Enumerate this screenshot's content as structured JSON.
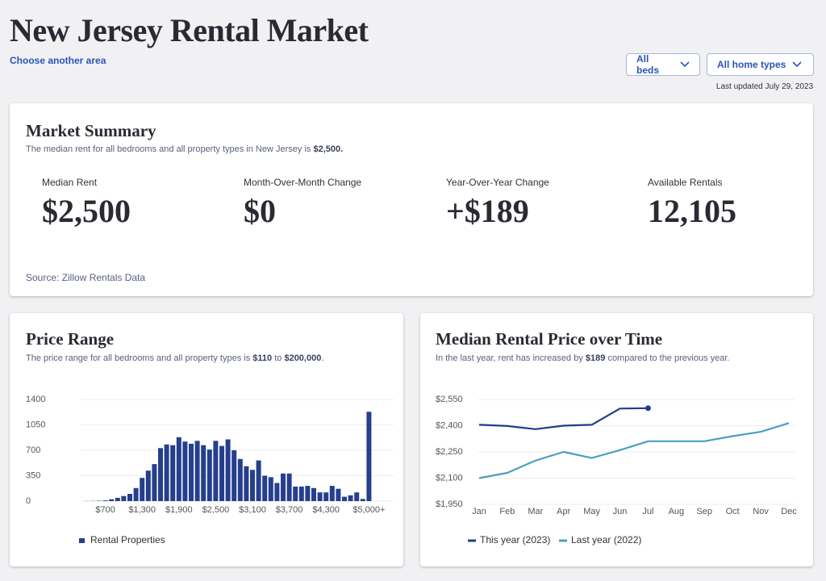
{
  "header": {
    "title": "New Jersey Rental Market",
    "link": "Choose another area",
    "filters": [
      "All beds",
      "All home types"
    ],
    "updated": "Last updated July 29, 2023"
  },
  "summary": {
    "title": "Market Summary",
    "subtitle": [
      "The median rent for all bedrooms and all property types in New Jersey is",
      "$2,500."
    ],
    "stats": [
      {
        "label": "Median Rent",
        "value": "$2,500"
      },
      {
        "label": "Month-Over-Month Change",
        "value": "$0"
      },
      {
        "label": "Year-Over-Year Change",
        "value": "+$189"
      },
      {
        "label": "Available Rentals",
        "value": "12,105"
      }
    ],
    "source": "Source: Zillow Rentals Data"
  },
  "chart_data": [
    {
      "type": "bar",
      "title": "Price Range",
      "subtitle": [
        "The price range for all bedrooms and all property types is",
        "$110",
        "to",
        "$200,000",
        "."
      ],
      "categories": [
        null,
        null,
        null,
        "$700",
        null,
        null,
        null,
        null,
        null,
        "$1,300",
        null,
        null,
        null,
        null,
        null,
        "$1,900",
        null,
        null,
        null,
        null,
        null,
        "$2,500",
        null,
        null,
        null,
        null,
        null,
        "$3,100",
        null,
        null,
        null,
        null,
        null,
        "$3,700",
        null,
        null,
        null,
        null,
        null,
        "$4,300",
        null,
        null,
        null,
        null,
        null,
        null,
        "$5,000+"
      ],
      "series": [
        {
          "name": "Rental Properties",
          "color": "#253f8e",
          "values": [
            2,
            3,
            5,
            10,
            25,
            45,
            70,
            100,
            180,
            320,
            420,
            510,
            730,
            780,
            770,
            880,
            820,
            790,
            830,
            770,
            710,
            830,
            760,
            850,
            700,
            580,
            480,
            430,
            560,
            350,
            330,
            250,
            380,
            380,
            200,
            200,
            210,
            180,
            120,
            120,
            210,
            170,
            60,
            80,
            120,
            30,
            1230
          ]
        }
      ],
      "ylim": [
        0,
        1400
      ],
      "yticks": [
        0,
        350,
        700,
        1050,
        1400
      ],
      "grid": true
    },
    {
      "type": "line",
      "title": "Median Rental Price over Time",
      "subtitle": [
        "In the last year, rent has increased by",
        "$189",
        "compared to the previous year."
      ],
      "categories": [
        "Jan",
        "Feb",
        "Mar",
        "Apr",
        "May",
        "Jun",
        "Jul",
        "Aug",
        "Sep",
        "Oct",
        "Nov",
        "Dec"
      ],
      "series": [
        {
          "name": "This year (2023)",
          "color": "#1f3d8c",
          "values": [
            2405,
            2398,
            2380,
            2400,
            2405,
            2498,
            2500,
            null,
            null,
            null,
            null,
            null
          ]
        },
        {
          "name": "Last year (2022)",
          "color": "#4aa0c4",
          "values": [
            2100,
            2130,
            2200,
            2250,
            2215,
            2260,
            2311,
            2311,
            2311,
            2340,
            2365,
            2415
          ]
        }
      ],
      "ylim": [
        1950,
        2550
      ],
      "yticks": [
        {
          "value": 1950,
          "label": "$1,950"
        },
        {
          "value": 2100,
          "label": "$2,100"
        },
        {
          "value": 2250,
          "label": "$2,250"
        },
        {
          "value": 2400,
          "label": "$2,400"
        },
        {
          "value": 2550,
          "label": "$2,550"
        }
      ],
      "grid": true
    }
  ]
}
